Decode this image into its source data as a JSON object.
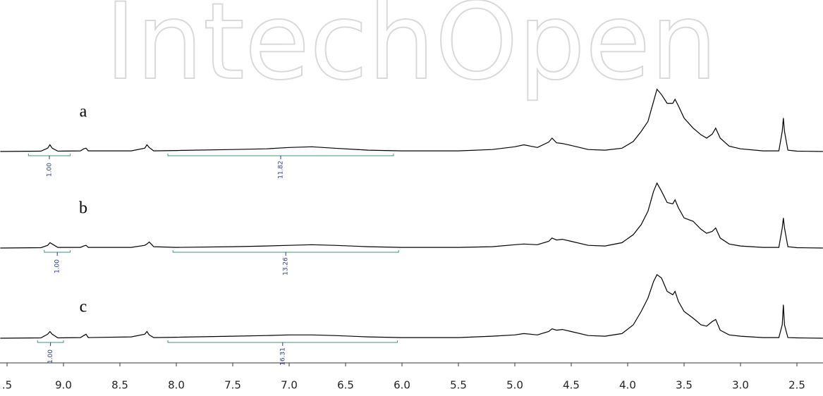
{
  "chart_data": {
    "type": "spectrum",
    "watermark": "IntechOpen",
    "xlim": [
      9.5625,
      2.2688
    ],
    "ylim": [
      0,
      1
    ],
    "xticks": [
      {
        "value": 9.5,
        "label": ".5"
      },
      {
        "value": 9,
        "label": "9.0"
      },
      8.5,
      {
        "value": 8,
        "label": "8.0"
      },
      7.5,
      {
        "value": 7,
        "label": "7.0"
      },
      6.5,
      {
        "value": 6,
        "label": "6.0"
      },
      5.5,
      {
        "value": 5,
        "label": "5.0"
      },
      4.5,
      {
        "value": 4,
        "label": "4.0"
      },
      3.5,
      {
        "value": 3,
        "label": "3.0"
      },
      2.5
    ],
    "x": [
      9.56,
      9.2,
      9.14,
      9.12,
      9.1,
      9.05,
      8.85,
      8.82,
      8.8,
      8.78,
      8.4,
      8.28,
      8.26,
      8.24,
      8.2,
      8.0,
      7.5,
      7.2,
      7.0,
      6.8,
      6.6,
      6.3,
      6.0,
      5.5,
      5.2,
      5.0,
      4.92,
      4.8,
      4.7,
      4.67,
      4.63,
      4.58,
      4.5,
      4.35,
      4.2,
      4.05,
      3.95,
      3.88,
      3.82,
      3.77,
      3.74,
      3.7,
      3.65,
      3.6,
      3.58,
      3.55,
      3.5,
      3.42,
      3.35,
      3.3,
      3.25,
      3.22,
      3.18,
      3.1,
      3.0,
      2.8,
      2.66,
      2.63,
      2.62,
      2.61,
      2.58,
      2.5,
      2.27
    ],
    "series": [
      {
        "name": "a",
        "color": "#000000",
        "values": [
          0,
          0.005,
          0.05,
          0.1,
          0.05,
          0.005,
          0.01,
          0.04,
          0.05,
          0.01,
          0.01,
          0.05,
          0.1,
          0.06,
          0.01,
          0.015,
          0.03,
          0.04,
          0.06,
          0.07,
          0.05,
          0.02,
          0.01,
          0.01,
          0.03,
          0.07,
          0.1,
          0.06,
          0.14,
          0.2,
          0.13,
          0.12,
          0.09,
          0.03,
          0.02,
          0.05,
          0.15,
          0.3,
          0.45,
          0.75,
          0.93,
          0.85,
          0.72,
          0.72,
          0.78,
          0.68,
          0.5,
          0.35,
          0.25,
          0.2,
          0.26,
          0.35,
          0.2,
          0.08,
          0.04,
          0.01,
          0.01,
          0.3,
          0.5,
          0.3,
          0.02,
          0.005,
          0
        ],
        "integrals": [
          {
            "from": 9.31,
            "to": 8.94,
            "value": 1,
            "label": "1.00"
          },
          {
            "from": 8.075,
            "to": 6.075,
            "value": 11.82
          }
        ]
      },
      {
        "name": "b",
        "color": "#000000",
        "values": [
          0,
          0.005,
          0.04,
          0.08,
          0.06,
          0.01,
          0.01,
          0.03,
          0.04,
          0.01,
          0.01,
          0.04,
          0.06,
          0.09,
          0.02,
          0.01,
          0.02,
          0.03,
          0.04,
          0.05,
          0.04,
          0.02,
          0.01,
          0.01,
          0.02,
          0.05,
          0.06,
          0.05,
          0.1,
          0.15,
          0.12,
          0.13,
          0.1,
          0.04,
          0.03,
          0.08,
          0.2,
          0.35,
          0.55,
          0.85,
          0.97,
          0.85,
          0.68,
          0.66,
          0.72,
          0.6,
          0.45,
          0.4,
          0.28,
          0.22,
          0.25,
          0.3,
          0.15,
          0.06,
          0.03,
          0.01,
          0.01,
          0.3,
          0.45,
          0.3,
          0.02,
          0.005,
          0
        ],
        "integrals": [
          {
            "from": 9.17,
            "to": 8.94,
            "value": 1,
            "label": "1.00"
          },
          {
            "from": 8.03,
            "to": 6.03,
            "value": 13.26
          }
        ]
      },
      {
        "name": "c",
        "color": "#000000",
        "values": [
          0,
          0.005,
          0.06,
          0.1,
          0.06,
          0.005,
          0.01,
          0.04,
          0.06,
          0.01,
          0.02,
          0.06,
          0.1,
          0.05,
          0.01,
          0.015,
          0.03,
          0.04,
          0.05,
          0.05,
          0.04,
          0.02,
          0.01,
          0.01,
          0.03,
          0.05,
          0.07,
          0.05,
          0.1,
          0.14,
          0.12,
          0.13,
          0.1,
          0.04,
          0.03,
          0.07,
          0.2,
          0.4,
          0.6,
          0.85,
          0.95,
          0.9,
          0.7,
          0.65,
          0.7,
          0.55,
          0.4,
          0.3,
          0.2,
          0.18,
          0.25,
          0.28,
          0.12,
          0.05,
          0.03,
          0.01,
          0.01,
          0.2,
          0.5,
          0.2,
          0.01,
          0.005,
          0
        ],
        "integrals": [
          {
            "from": 9.23,
            "to": 9.0,
            "value": 1,
            "label": "1.00"
          },
          {
            "from": 8.075,
            "to": 6.04,
            "value": 16.31
          }
        ]
      }
    ],
    "integral_color": "#3a9a6e"
  }
}
